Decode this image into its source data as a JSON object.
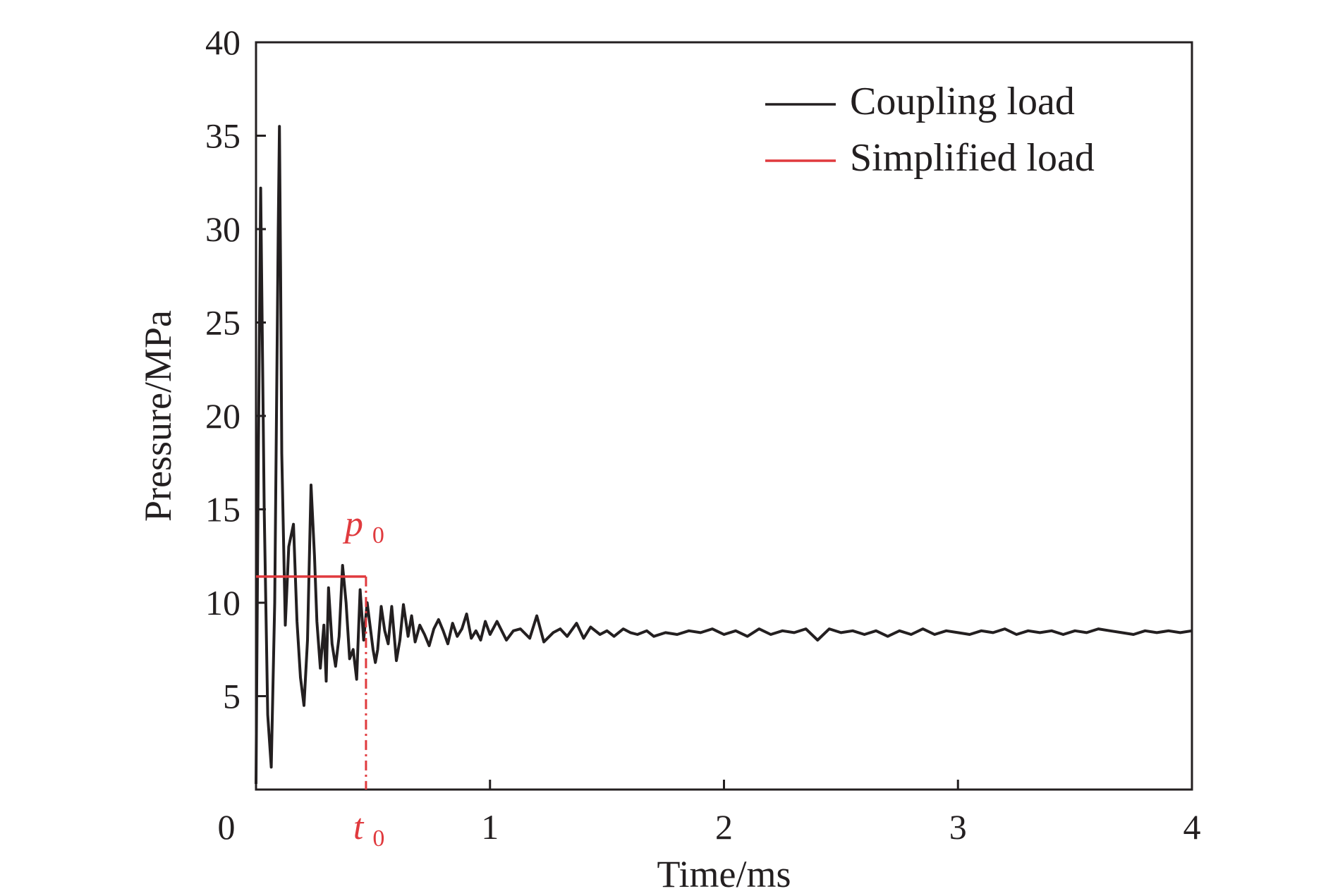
{
  "chart_data": {
    "type": "line",
    "xlabel": "Time/ms",
    "ylabel": "Pressure/MPa",
    "xlim": [
      0,
      4
    ],
    "ylim": [
      0,
      40
    ],
    "x_ticks": [
      0,
      1,
      2,
      3,
      4
    ],
    "y_ticks": [
      5,
      10,
      15,
      20,
      25,
      30,
      35,
      40
    ],
    "origin_label": "0",
    "grid": false,
    "legend_position": "top-right",
    "colors": {
      "coupling": "#231f20",
      "simplified": "#e03a3e"
    },
    "series": [
      {
        "name": "Coupling load",
        "x": [
          0,
          0.01,
          0.02,
          0.035,
          0.05,
          0.065,
          0.08,
          0.095,
          0.1,
          0.105,
          0.11,
          0.125,
          0.14,
          0.16,
          0.175,
          0.19,
          0.205,
          0.22,
          0.235,
          0.25,
          0.26,
          0.275,
          0.29,
          0.3,
          0.31,
          0.325,
          0.34,
          0.355,
          0.37,
          0.385,
          0.4,
          0.415,
          0.43,
          0.445,
          0.46,
          0.475,
          0.49,
          0.5,
          0.51,
          0.52,
          0.535,
          0.55,
          0.565,
          0.58,
          0.6,
          0.615,
          0.63,
          0.65,
          0.665,
          0.68,
          0.7,
          0.72,
          0.74,
          0.76,
          0.78,
          0.8,
          0.82,
          0.84,
          0.86,
          0.88,
          0.9,
          0.92,
          0.94,
          0.96,
          0.98,
          1.0,
          1.03,
          1.07,
          1.1,
          1.13,
          1.17,
          1.2,
          1.23,
          1.27,
          1.3,
          1.33,
          1.37,
          1.4,
          1.43,
          1.47,
          1.5,
          1.53,
          1.57,
          1.6,
          1.63,
          1.67,
          1.7,
          1.75,
          1.8,
          1.85,
          1.9,
          1.95,
          2.0,
          2.05,
          2.1,
          2.15,
          2.2,
          2.25,
          2.3,
          2.35,
          2.4,
          2.45,
          2.5,
          2.55,
          2.6,
          2.65,
          2.7,
          2.75,
          2.8,
          2.85,
          2.9,
          2.95,
          3.0,
          3.05,
          3.1,
          3.15,
          3.2,
          3.25,
          3.3,
          3.35,
          3.4,
          3.45,
          3.5,
          3.55,
          3.6,
          3.65,
          3.7,
          3.75,
          3.8,
          3.85,
          3.9,
          3.95,
          4.0
        ],
        "y": [
          0.3,
          18,
          32.2,
          15,
          4,
          1.2,
          10,
          30,
          35.5,
          28,
          18,
          8.8,
          13,
          14.2,
          9,
          6,
          4.5,
          8,
          16.3,
          12.5,
          9,
          6.5,
          8.8,
          5.8,
          10.8,
          7.8,
          6.6,
          8.2,
          12,
          10,
          7,
          7.5,
          5.9,
          10.7,
          8,
          10,
          8.5,
          7.5,
          6.8,
          7.5,
          9.8,
          8.5,
          7.8,
          9.8,
          6.9,
          8,
          9.9,
          8.2,
          9.3,
          7.9,
          8.8,
          8.3,
          7.7,
          8.6,
          9.1,
          8.5,
          7.8,
          8.9,
          8.2,
          8.6,
          9.4,
          8.1,
          8.5,
          8.0,
          9.0,
          8.3,
          9.0,
          8.0,
          8.5,
          8.6,
          8.1,
          9.3,
          7.9,
          8.4,
          8.6,
          8.2,
          8.9,
          8.1,
          8.7,
          8.3,
          8.5,
          8.2,
          8.6,
          8.4,
          8.3,
          8.5,
          8.2,
          8.4,
          8.3,
          8.5,
          8.4,
          8.6,
          8.3,
          8.5,
          8.2,
          8.6,
          8.3,
          8.5,
          8.4,
          8.6,
          8.0,
          8.6,
          8.4,
          8.5,
          8.3,
          8.5,
          8.2,
          8.5,
          8.3,
          8.6,
          8.3,
          8.5,
          8.4,
          8.3,
          8.5,
          8.4,
          8.6,
          8.3,
          8.5,
          8.4,
          8.5,
          8.3,
          8.5,
          8.4,
          8.6,
          8.5,
          8.4,
          8.3,
          8.5,
          8.4,
          8.5,
          8.4,
          8.5
        ]
      },
      {
        "name": "Simplified load",
        "x": [
          0,
          0.47
        ],
        "y": [
          11.4,
          11.4
        ]
      }
    ],
    "dropline": {
      "x": 0.47,
      "y_from": 11.4,
      "y_to": 0
    },
    "annotations": {
      "p0": {
        "main": "p",
        "sub": "0",
        "x": 0.47,
        "y": 11.4
      },
      "t0": {
        "main": "t",
        "sub": "0",
        "x": 0.47
      }
    },
    "legend": [
      "Coupling load",
      "Simplified load"
    ]
  }
}
